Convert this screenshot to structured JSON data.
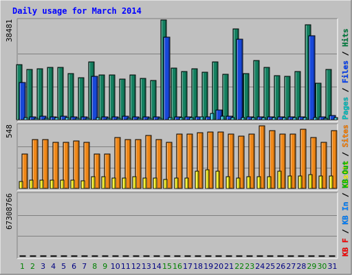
{
  "chart_data": {
    "type": "bar",
    "title": "Daily usage for March 2014",
    "categories": [
      "1",
      "2",
      "3",
      "4",
      "5",
      "6",
      "7",
      "8",
      "9",
      "10",
      "11",
      "12",
      "13",
      "14",
      "15",
      "16",
      "17",
      "18",
      "19",
      "20",
      "21",
      "22",
      "23",
      "24",
      "25",
      "26",
      "27",
      "28",
      "29",
      "30",
      "31"
    ],
    "weekend_days": [
      "1",
      "2",
      "8",
      "9",
      "15",
      "16",
      "22",
      "23",
      "29",
      "30"
    ],
    "panels": [
      {
        "name": "hits-files-pages",
        "ymax_label": "38481",
        "ylim": [
          0,
          38481
        ],
        "grid": true,
        "legend": [
          {
            "text": "Pages",
            "color": "#00c0c0"
          },
          {
            "text": " / ",
            "color": "#000000"
          },
          {
            "text": "Files",
            "color": "#0040ff"
          },
          {
            "text": " / ",
            "color": "#000000"
          },
          {
            "text": "Hits",
            "color": "#008040"
          }
        ],
        "series": [
          {
            "name": "Hits",
            "color": "#148060",
            "values": [
              21300,
              19300,
              19600,
              20200,
              20200,
              17800,
              16100,
              22200,
              17300,
              17300,
              15600,
              17300,
              15900,
              15200,
              38500,
              19800,
              18700,
              19700,
              18300,
              22200,
              17600,
              35000,
              17900,
              22800,
              20100,
              16900,
              16600,
              18700,
              36600,
              14100,
              19400
            ]
          },
          {
            "name": "Files",
            "color": "#1848d8",
            "values": [
              14400,
              1000,
              1200,
              1100,
              1200,
              1000,
              1000,
              16600,
              1000,
              1100,
              1200,
              1100,
              1000,
              1000,
              31800,
              1100,
              1000,
              1000,
              1100,
              3800,
              1300,
              31100,
              1000,
              1000,
              1100,
              1000,
              1100,
              1100,
              32300,
              1000,
              1700
            ]
          },
          {
            "name": "Pages",
            "color": "#30c8d8",
            "values": [
              700,
              600,
              600,
              700,
              800,
              600,
              600,
              700,
              600,
              600,
              600,
              600,
              600,
              600,
              700,
              800,
              800,
              1100,
              2300,
              1400,
              700,
              700,
              800,
              800,
              700,
              800,
              700,
              700,
              700,
              600,
              800
            ]
          }
        ]
      },
      {
        "name": "visits-sites",
        "ymax_label": "548",
        "ylim": [
          0,
          548
        ],
        "grid": true,
        "legend": [
          {
            "text": "Visits",
            "color": "#ffff00"
          },
          {
            "text": " / ",
            "color": "#000000"
          },
          {
            "text": "Sites",
            "color": "#ff8000"
          }
        ],
        "series": [
          {
            "name": "Sites",
            "color": "#f08818",
            "values": [
              300,
              420,
              420,
              400,
              400,
              410,
              400,
              300,
              300,
              440,
              420,
              420,
              460,
              420,
              400,
              470,
              470,
              480,
              490,
              490,
              470,
              450,
              470,
              540,
              500,
              470,
              470,
              510,
              440,
              400,
              500
            ]
          },
          {
            "name": "Visits",
            "color": "#f8f018",
            "values": [
              60,
              70,
              70,
              70,
              70,
              70,
              65,
              100,
              100,
              90,
              90,
              100,
              90,
              90,
              80,
              90,
              90,
              150,
              160,
              150,
              100,
              90,
              100,
              100,
              100,
              150,
              110,
              110,
              120,
              110,
              110
            ]
          }
        ]
      },
      {
        "name": "kbytes",
        "ymax_label": "67308766",
        "ylim": [
          0,
          67308766
        ],
        "grid": true,
        "legend": [
          {
            "text": "KB F",
            "color": "#ff0000"
          },
          {
            "text": " / ",
            "color": "#000000"
          },
          {
            "text": "KB In",
            "color": "#0080ff"
          },
          {
            "text": " / ",
            "color": "#000000"
          },
          {
            "text": "KB Out",
            "color": "#00c000"
          }
        ],
        "series": [
          {
            "name": "KB F",
            "color": "#e81818",
            "values": [
              28500,
              3000,
              3000,
              3100,
              3000,
              3000,
              2800,
              33000,
              3200,
              3300,
              3200,
              3000,
              3100,
              3200,
              67000,
              3000,
              3100,
              3200,
              5200,
              11200,
              4800,
              67000,
              3300,
              4600,
              5000,
              4500,
              4000,
              4600,
              67000,
              3000,
              3000
            ]
          }
        ]
      }
    ]
  },
  "colors": {
    "frame": "#c0c0c0",
    "plot_bg": "#c0c0c0",
    "title_color": "#0000ff",
    "weekday_label": "#000080",
    "weekend_label": "#008000"
  }
}
